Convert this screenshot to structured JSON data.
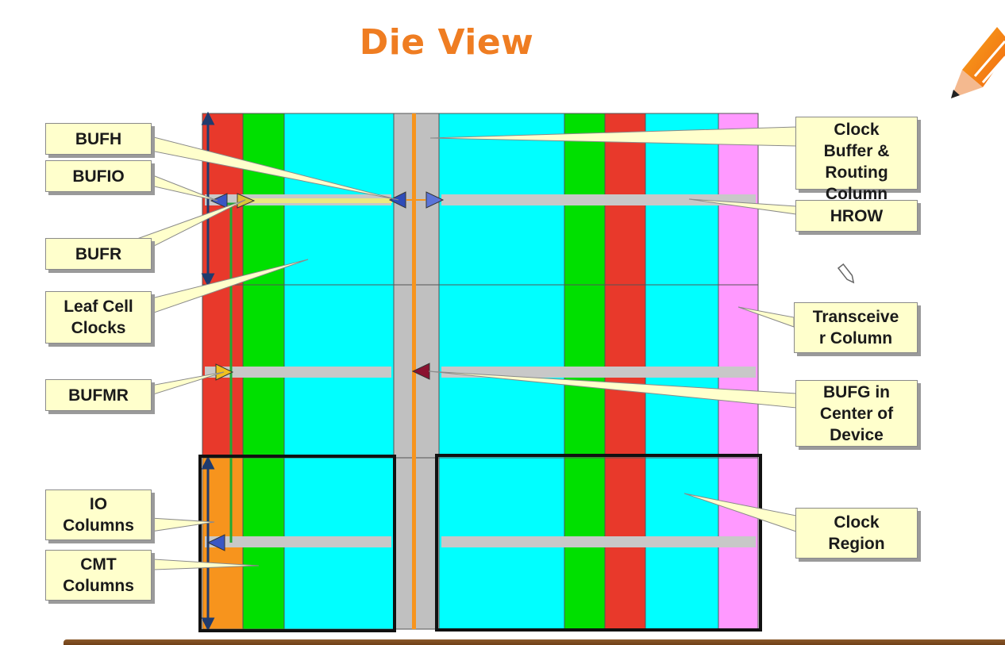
{
  "title": "Die View",
  "callouts": {
    "bufh": "BUFH",
    "bufio": "BUFIO",
    "bufr": "BUFR",
    "leaf_cell_clocks": "Leaf Cell\nClocks",
    "bufmr": "BUFMR",
    "io_columns": "IO\nColumns",
    "cmt_columns": "CMT\nColumns",
    "clock_buffer_routing_column": "Clock\nBuffer &\nRouting\nColumn",
    "hrow": "HROW",
    "transceiver_column": "Transceive\nr Column",
    "bufg_center": "BUFG in\nCenter of\nDevice",
    "clock_region": "Clock\nRegion"
  },
  "colors": {
    "title": "#ef7d22",
    "io_column": "#e8392b",
    "io_column_highlight": "#f7941d",
    "cmt_column": "#00e000",
    "logic_column": "#00ffff",
    "clock_column": "#c0c0c0",
    "transceiver_column": "#ff99ff",
    "callout_fill": "#ffffcc",
    "bufg_spine": "#f7941d"
  },
  "icons": [
    "pencil-icon",
    "cursor-icon"
  ]
}
